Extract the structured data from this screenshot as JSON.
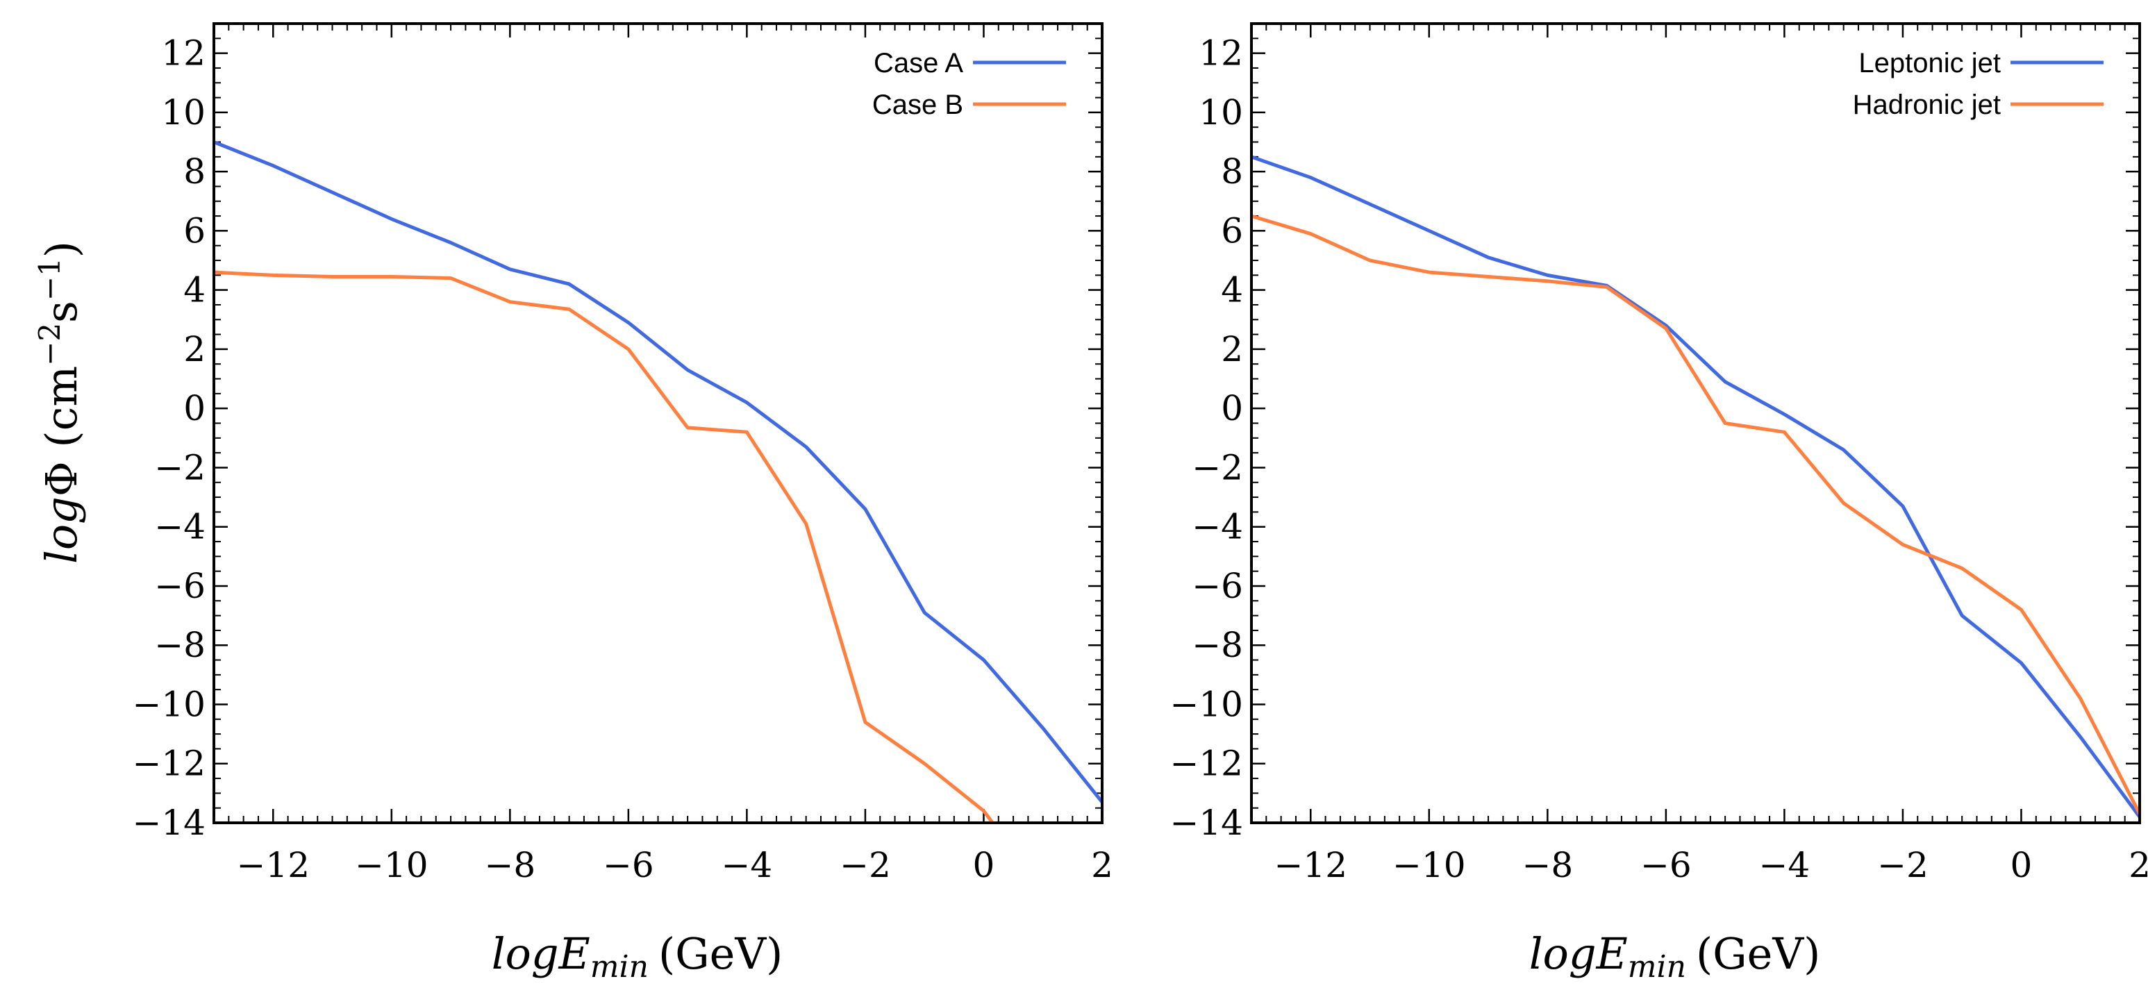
{
  "chart_data": [
    {
      "type": "line",
      "title": "",
      "xlabel": "logE_min (GeV)",
      "xlabel_main": "logE",
      "xlabel_sub": "min",
      "xlabel_unit": "(GeV)",
      "ylabel": "logΦ (cm⁻²s⁻¹)",
      "ylabel_italic": "log",
      "ylabel_phi": "Φ",
      "ylabel_unit_open": " (cm",
      "ylabel_exp1": "−2",
      "ylabel_s": "s",
      "ylabel_exp2": "−1",
      "ylabel_close": ")",
      "xlim": [
        -13,
        2
      ],
      "ylim": [
        -14,
        13
      ],
      "xticks": [
        -12,
        -10,
        -8,
        -6,
        -4,
        -2,
        0,
        2
      ],
      "xtick_labels": [
        "−12",
        "−10",
        "−8",
        "−6",
        "−4",
        "−2",
        "0",
        "2"
      ],
      "yticks": [
        12,
        10,
        8,
        6,
        4,
        2,
        0,
        -2,
        -4,
        -6,
        -8,
        -10,
        -12,
        -14
      ],
      "ytick_labels": [
        "12",
        "10",
        "8",
        "6",
        "4",
        "2",
        "0",
        "−2",
        "−4",
        "−6",
        "−8",
        "−10",
        "−12",
        "−14"
      ],
      "legend_position": "top-right",
      "series": [
        {
          "name": "Case A",
          "color": "#4169e1",
          "x": [
            -13,
            -12,
            -11,
            -10,
            -9,
            -8,
            -7,
            -6,
            -5,
            -4,
            -3,
            -2,
            -1,
            0,
            1,
            2
          ],
          "y": [
            9.0,
            8.2,
            7.3,
            6.4,
            5.6,
            4.7,
            4.2,
            2.9,
            1.3,
            0.2,
            -1.3,
            -3.4,
            -6.9,
            -8.5,
            -10.8,
            -13.3
          ]
        },
        {
          "name": "Case B",
          "color": "#ff7f3f",
          "x": [
            -13,
            -12,
            -11,
            -10,
            -9,
            -8,
            -7,
            -6,
            -5,
            -4,
            -3,
            -2,
            -1,
            0,
            0.15
          ],
          "y": [
            4.6,
            4.5,
            4.45,
            4.45,
            4.4,
            3.6,
            3.35,
            2.0,
            -0.65,
            -0.8,
            -3.9,
            -10.6,
            -12.0,
            -13.6,
            -14.0
          ]
        }
      ]
    },
    {
      "type": "line",
      "title": "",
      "xlabel": "logE_min (GeV)",
      "xlabel_main": "logE",
      "xlabel_sub": "min",
      "xlabel_unit": "(GeV)",
      "ylabel": "",
      "xlim": [
        -13,
        2
      ],
      "ylim": [
        -14,
        13
      ],
      "xticks": [
        -12,
        -10,
        -8,
        -6,
        -4,
        -2,
        0,
        2
      ],
      "xtick_labels": [
        "−12",
        "−10",
        "−8",
        "−6",
        "−4",
        "−2",
        "0",
        "2"
      ],
      "yticks": [
        12,
        10,
        8,
        6,
        4,
        2,
        0,
        -2,
        -4,
        -6,
        -8,
        -10,
        -12,
        -14
      ],
      "ytick_labels": [
        "12",
        "10",
        "8",
        "6",
        "4",
        "2",
        "0",
        "−2",
        "−4",
        "−6",
        "−8",
        "−10",
        "−12",
        "−14"
      ],
      "legend_position": "top-right",
      "series": [
        {
          "name": "Leptonic jet",
          "color": "#4169e1",
          "x": [
            -13,
            -12,
            -11,
            -10,
            -9,
            -8,
            -7,
            -6,
            -5,
            -4,
            -3,
            -2,
            -1,
            0,
            1,
            2
          ],
          "y": [
            8.5,
            7.8,
            6.9,
            6.0,
            5.1,
            4.5,
            4.15,
            2.8,
            0.9,
            -0.2,
            -1.4,
            -3.3,
            -7.0,
            -8.6,
            -11.1,
            -13.8
          ]
        },
        {
          "name": "Hadronic jet",
          "color": "#ff7f3f",
          "x": [
            -13,
            -12,
            -11,
            -10,
            -9,
            -8,
            -7,
            -6,
            -5,
            -4,
            -3,
            -2,
            -1,
            0,
            1,
            2
          ],
          "y": [
            6.5,
            5.9,
            5.0,
            4.6,
            4.45,
            4.3,
            4.1,
            2.7,
            -0.5,
            -0.8,
            -3.2,
            -4.6,
            -5.4,
            -6.8,
            -9.8,
            -13.7
          ]
        }
      ]
    }
  ]
}
